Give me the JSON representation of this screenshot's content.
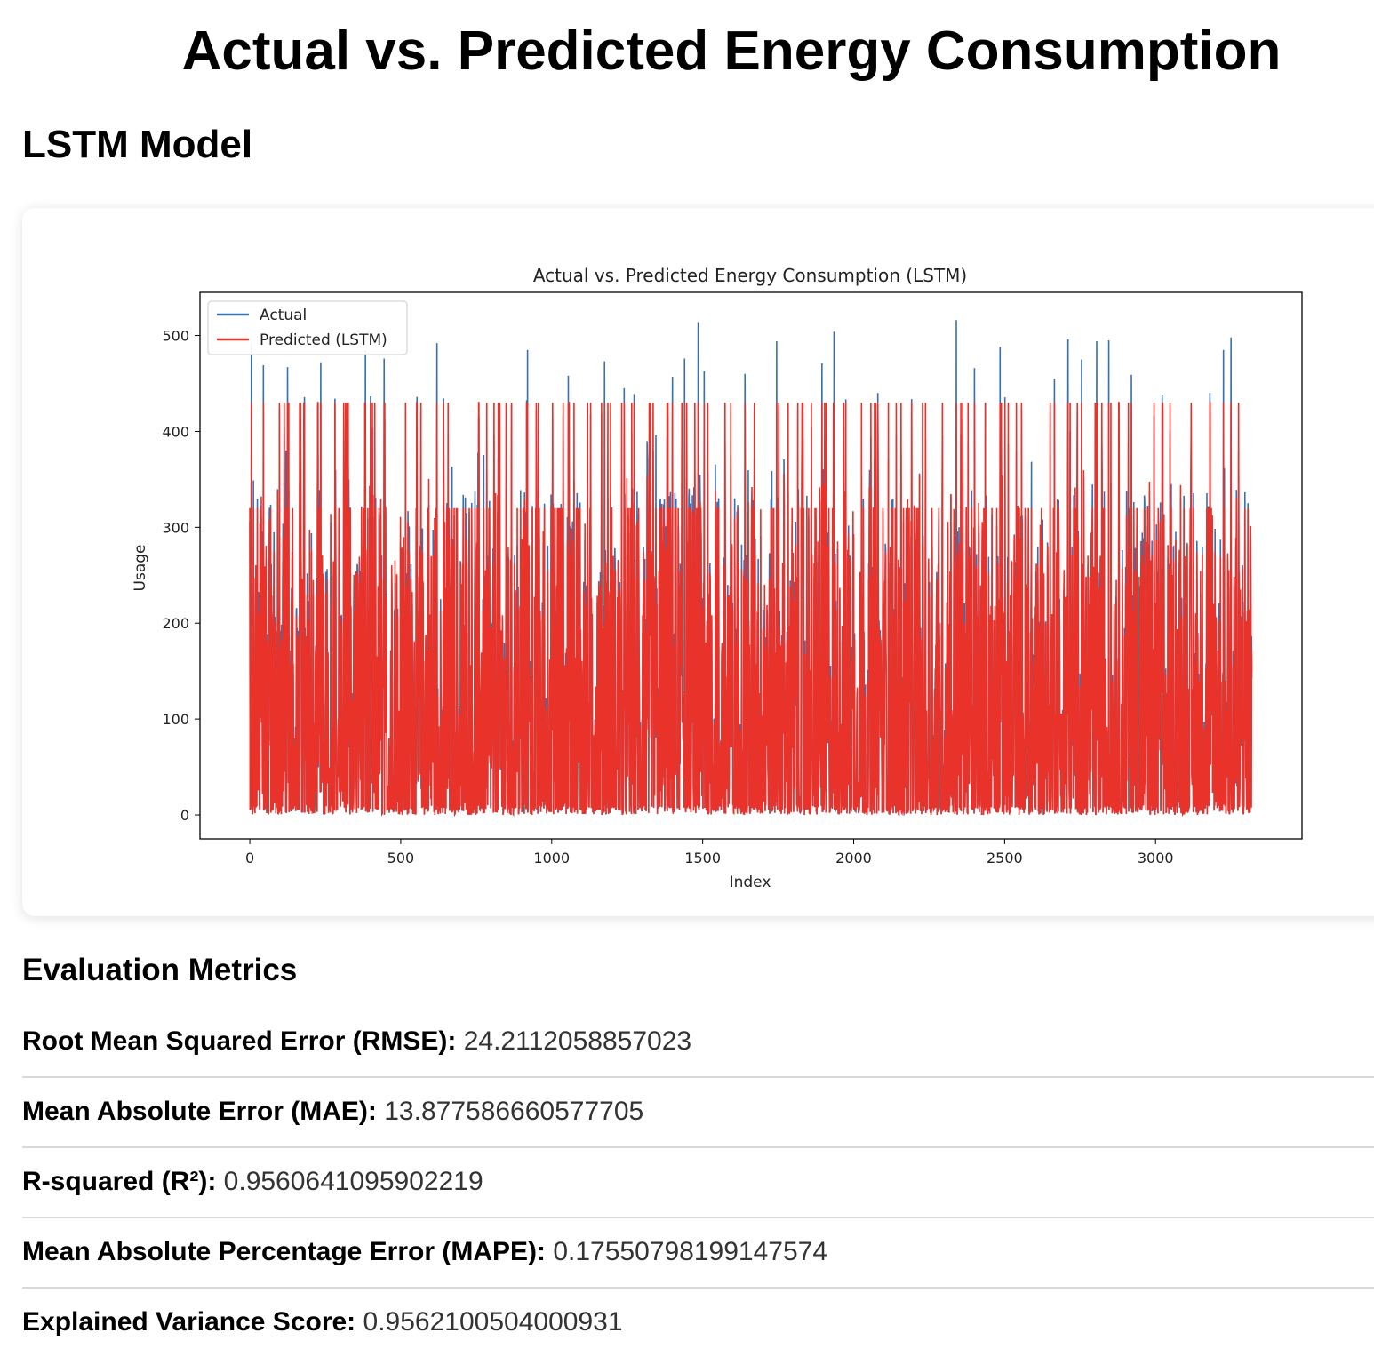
{
  "page": {
    "title": "Actual vs. Predicted Energy Consumption"
  },
  "section": {
    "title": "LSTM Model"
  },
  "chart_data": {
    "type": "line",
    "title": "Actual vs. Predicted Energy Consumption (LSTM)",
    "xlabel": "Index",
    "ylabel": "Usage",
    "xlim": [
      -165,
      3485
    ],
    "ylim": [
      -25,
      545
    ],
    "xticks": [
      0,
      500,
      1000,
      1500,
      2000,
      2500,
      3000
    ],
    "yticks": [
      0,
      100,
      200,
      300,
      400,
      500
    ],
    "grid": false,
    "legend_position": "top-left",
    "n_points": 3320,
    "series": [
      {
        "name": "Actual",
        "color": "#3a70b0",
        "peaks": [
          {
            "x": 5,
            "y": 493
          },
          {
            "x": 45,
            "y": 469
          },
          {
            "x": 125,
            "y": 467
          },
          {
            "x": 235,
            "y": 472
          },
          {
            "x": 383,
            "y": 485
          },
          {
            "x": 445,
            "y": 476
          },
          {
            "x": 620,
            "y": 492
          },
          {
            "x": 920,
            "y": 485
          },
          {
            "x": 1055,
            "y": 458
          },
          {
            "x": 1175,
            "y": 473
          },
          {
            "x": 1240,
            "y": 445
          },
          {
            "x": 1400,
            "y": 457
          },
          {
            "x": 1440,
            "y": 476
          },
          {
            "x": 1485,
            "y": 514
          },
          {
            "x": 1505,
            "y": 463
          },
          {
            "x": 1640,
            "y": 460
          },
          {
            "x": 1745,
            "y": 494
          },
          {
            "x": 1895,
            "y": 471
          },
          {
            "x": 1935,
            "y": 504
          },
          {
            "x": 2080,
            "y": 440
          },
          {
            "x": 2340,
            "y": 516
          },
          {
            "x": 2400,
            "y": 466
          },
          {
            "x": 2485,
            "y": 488
          },
          {
            "x": 2665,
            "y": 455
          },
          {
            "x": 2710,
            "y": 496
          },
          {
            "x": 2755,
            "y": 475
          },
          {
            "x": 2805,
            "y": 494
          },
          {
            "x": 2845,
            "y": 495
          },
          {
            "x": 2920,
            "y": 459
          },
          {
            "x": 3180,
            "y": 440
          },
          {
            "x": 3225,
            "y": 485
          },
          {
            "x": 3250,
            "y": 498
          }
        ],
        "typical_range": [
          0,
          320
        ]
      },
      {
        "name": "Predicted (LSTM)",
        "color": "#e8322a",
        "max": 430,
        "secondary_level": 320,
        "typical_range": [
          0,
          430
        ]
      }
    ]
  },
  "metrics": {
    "title": "Evaluation Metrics",
    "items": [
      {
        "label": "Root Mean Squared Error (RMSE):",
        "value": "24.2112058857023"
      },
      {
        "label": "Mean Absolute Error (MAE):",
        "value": "13.877586660577705"
      },
      {
        "label": "R-squared (R²):",
        "value": "0.9560641095902219"
      },
      {
        "label": "Mean Absolute Percentage Error (MAPE):",
        "value": "0.17550798199147574"
      },
      {
        "label": "Explained Variance Score:",
        "value": "0.9562100504000931"
      }
    ]
  }
}
